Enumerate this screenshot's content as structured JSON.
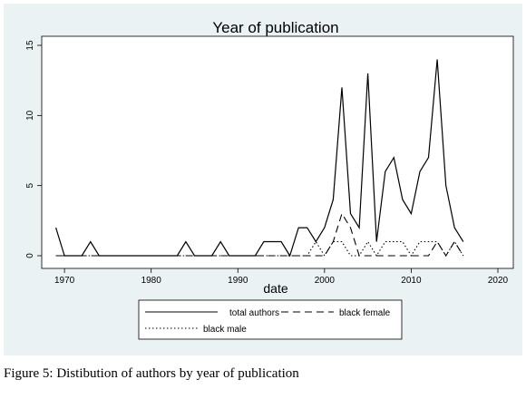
{
  "chart_data": {
    "type": "line",
    "title": "Year of publication",
    "xlabel": "date",
    "ylabel": "",
    "xlim": [
      1968,
      2020
    ],
    "ylim": [
      0,
      15
    ],
    "x_ticks": [
      1970,
      1980,
      1990,
      2000,
      2010,
      2020
    ],
    "y_ticks": [
      0,
      5,
      10,
      15
    ],
    "grid": false,
    "legend_position": "bottom",
    "x": [
      1969,
      1970,
      1971,
      1972,
      1973,
      1974,
      1975,
      1976,
      1977,
      1978,
      1979,
      1980,
      1981,
      1982,
      1983,
      1984,
      1985,
      1986,
      1987,
      1988,
      1989,
      1990,
      1991,
      1992,
      1993,
      1994,
      1995,
      1996,
      1997,
      1998,
      1999,
      2000,
      2001,
      2002,
      2003,
      2004,
      2005,
      2006,
      2007,
      2008,
      2009,
      2010,
      2011,
      2012,
      2013,
      2014,
      2015,
      2016
    ],
    "series": [
      {
        "name": "total authors",
        "style": "solid",
        "values": [
          2,
          0,
          0,
          0,
          1,
          0,
          0,
          0,
          0,
          0,
          0,
          0,
          0,
          0,
          0,
          1,
          0,
          0,
          0,
          1,
          0,
          0,
          0,
          0,
          1,
          1,
          1,
          0,
          2,
          2,
          1,
          2,
          4,
          12,
          3,
          2,
          13,
          1,
          6,
          7,
          4,
          3,
          6,
          7,
          14,
          5,
          2,
          1
        ]
      },
      {
        "name": "black female",
        "style": "dashed",
        "values": [
          0,
          0,
          0,
          0,
          0,
          0,
          0,
          0,
          0,
          0,
          0,
          0,
          0,
          0,
          0,
          0,
          0,
          0,
          0,
          0,
          0,
          0,
          0,
          0,
          0,
          0,
          0,
          0,
          0,
          0,
          0,
          0,
          1,
          3,
          2,
          0,
          0,
          0,
          0,
          0,
          0,
          0,
          0,
          0,
          1,
          0,
          1,
          0
        ]
      },
      {
        "name": "black male",
        "style": "dotted",
        "values": [
          0,
          0,
          0,
          0,
          0,
          0,
          0,
          0,
          0,
          0,
          0,
          0,
          0,
          0,
          0,
          0,
          0,
          0,
          0,
          0,
          0,
          0,
          0,
          0,
          0,
          0,
          0,
          0,
          0,
          0,
          1,
          0,
          1,
          1,
          0,
          0,
          1,
          0,
          1,
          1,
          1,
          0,
          1,
          1,
          1,
          0,
          1,
          0
        ]
      }
    ]
  },
  "caption": "Figure 5: Distibution of authors by year of publication",
  "colors": {
    "outer_background": "#eaf2f3",
    "plot_background": "#ffffff",
    "line": "#000000"
  }
}
